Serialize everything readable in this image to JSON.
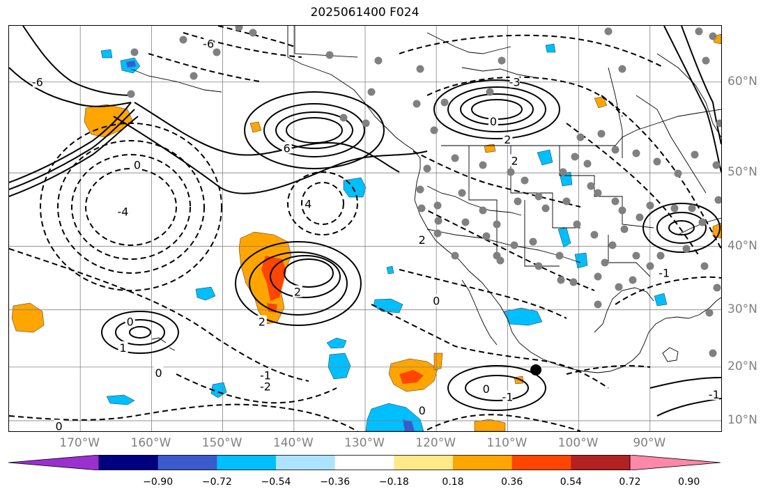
{
  "title": "2025061400 F024",
  "map": {
    "projection": "Mercator",
    "extent": {
      "lon": [
        -180,
        -80
      ],
      "lat": [
        8,
        65
      ]
    },
    "gridline_color": "#808080",
    "longitude_labels": [
      {
        "lon": -170,
        "text": "170°W"
      },
      {
        "lon": -160,
        "text": "160°W"
      },
      {
        "lon": -150,
        "text": "150°W"
      },
      {
        "lon": -140,
        "text": "140°W"
      },
      {
        "lon": -130,
        "text": "130°W"
      },
      {
        "lon": -120,
        "text": "120°W"
      },
      {
        "lon": -110,
        "text": "110°W"
      },
      {
        "lon": -100,
        "text": "100°W"
      },
      {
        "lon": -90,
        "text": "90°W"
      }
    ],
    "latitude_labels": [
      {
        "lat": 60,
        "text": "60°N"
      },
      {
        "lat": 50,
        "text": "50°N"
      },
      {
        "lat": 40,
        "text": "40°N"
      },
      {
        "lat": 30,
        "text": "30°N"
      },
      {
        "lat": 20,
        "text": "20°N"
      },
      {
        "lat": 10,
        "text": "10°N"
      }
    ],
    "station_marker_color": "#808080",
    "highlight_marker_color": "#000000"
  },
  "colorbar": {
    "tick_labels": [
      "−0.90",
      "−0.72",
      "−0.54",
      "−0.36",
      "−0.18",
      "0.18",
      "0.36",
      "0.54",
      "0.72",
      "0.90"
    ],
    "colors": [
      "#9b30d0",
      "#000080",
      "#3a5bcc",
      "#00bfff",
      "#aee3ff",
      "#ffffff",
      "#ffe98a",
      "#ffa500",
      "#ff4500",
      "#b22222",
      "#ff88aa"
    ]
  },
  "contours": {
    "solid_color": "#000000",
    "dashed_color": "#000000",
    "labels": [
      {
        "text": "6",
        "lon": -141,
        "lat": 53
      },
      {
        "text": "4",
        "lon": -138,
        "lat": 46
      },
      {
        "text": "2",
        "lon": -122,
        "lat": 41
      },
      {
        "text": "2",
        "lon": -139.5,
        "lat": 33
      },
      {
        "text": "2",
        "lon": -144.5,
        "lat": 28
      },
      {
        "text": "2",
        "lon": -110,
        "lat": 54
      },
      {
        "text": "2",
        "lon": -109,
        "lat": 51.5
      },
      {
        "text": "0",
        "lon": -112,
        "lat": 56
      },
      {
        "text": "0",
        "lon": -162,
        "lat": 51
      },
      {
        "text": "0",
        "lon": -163,
        "lat": 28
      },
      {
        "text": "0",
        "lon": -159,
        "lat": 19
      },
      {
        "text": "0",
        "lon": -113,
        "lat": 16
      },
      {
        "text": "0",
        "lon": -120,
        "lat": 31.5
      },
      {
        "text": "0",
        "lon": -122,
        "lat": 12
      },
      {
        "text": "0",
        "lon": -173,
        "lat": 9
      },
      {
        "text": "1",
        "lon": -164,
        "lat": 23.5
      },
      {
        "text": "-1",
        "lon": -144,
        "lat": 18.5
      },
      {
        "text": "-1",
        "lon": -110,
        "lat": 14.5
      },
      {
        "text": "-2",
        "lon": -144,
        "lat": 16.5
      },
      {
        "text": "-4",
        "lon": -164,
        "lat": 45
      },
      {
        "text": "-6",
        "lon": -152,
        "lat": 63.5
      },
      {
        "text": "-6",
        "lon": -176,
        "lat": 60
      },
      {
        "text": "-3",
        "lon": -109,
        "lat": 60
      },
      {
        "text": "-1",
        "lon": -88,
        "lat": 36
      },
      {
        "text": "-1",
        "lon": -81,
        "lat": 15
      }
    ]
  }
}
